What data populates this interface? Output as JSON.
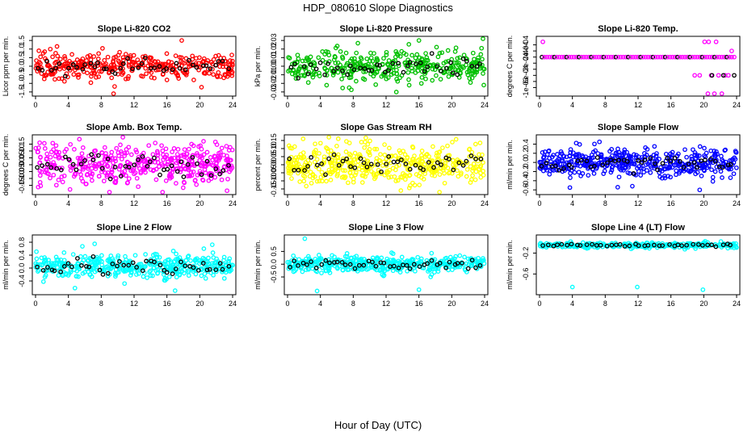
{
  "figure": {
    "title": "HDP_080610  Slope Diagnostics",
    "xlabel": "Hour of Day (UTC)"
  },
  "chart_data": [
    {
      "type": "scatter",
      "title": "Slope Li-820 CO2",
      "ylabel": "Licor ppm per min.",
      "color": "#ff0000",
      "xlim": [
        0,
        24
      ],
      "xticks": [
        "0",
        "4",
        "8",
        "12",
        "16",
        "20",
        "24"
      ],
      "ylim": [
        -1.6,
        1.6
      ],
      "yticks": [
        -1.5,
        -1.0,
        -0.5,
        0.0,
        0.5,
        1.0,
        1.5
      ],
      "ytick_labels": [
        "-1.5",
        "-1.0",
        "-0.5",
        "0.0",
        "0.5",
        "1.0",
        "1.5"
      ],
      "y_center": 0,
      "y_spread": 0.35,
      "n_points": 360,
      "n_black": 45,
      "outliers": [
        [
          0.4,
          0.9
        ],
        [
          1.8,
          1.0
        ],
        [
          9.5,
          -1.6
        ],
        [
          11.0,
          0.7
        ],
        [
          16.0,
          -0.8
        ],
        [
          17.8,
          1.5
        ],
        [
          22.5,
          -0.6
        ]
      ]
    },
    {
      "type": "scatter",
      "title": "Slope Li-820 Pressure",
      "ylabel": "kPa per min.",
      "color": "#00c000",
      "xlim": [
        0,
        24
      ],
      "xticks": [
        "0",
        "4",
        "8",
        "12",
        "16",
        "20",
        "24"
      ],
      "ylim": [
        -0.032,
        0.032
      ],
      "yticks": [
        -0.03,
        -0.02,
        -0.01,
        0.0,
        0.01,
        0.02,
        0.03
      ],
      "ytick_labels": [
        "-0.03",
        "-0.02",
        "-0.01",
        "0.00",
        "0.01",
        "0.02",
        "0.03"
      ],
      "y_center": 0,
      "y_spread": 0.01,
      "n_points": 360,
      "n_black": 45,
      "outliers": [
        [
          7.5,
          -0.025
        ],
        [
          16.0,
          0.03
        ],
        [
          23.8,
          0.032
        ],
        [
          23.9,
          -0.022
        ],
        [
          16.3,
          -0.02
        ]
      ]
    },
    {
      "type": "scatter",
      "title": "Slope Li-820 Temp.",
      "ylabel": "degrees C per min.",
      "color": "#ff00ff",
      "xlim": [
        0,
        24
      ],
      "xticks": [
        "0",
        "4",
        "8",
        "12",
        "16",
        "20",
        "24"
      ],
      "ylim": [
        -0.0012,
        0.0006
      ],
      "yticks": [
        -0.001,
        -0.0008,
        -0.0006,
        -0.0004,
        -0.0002,
        0,
        0.0002,
        0.0004
      ],
      "ytick_labels": [
        "-1e-03",
        "",
        "-6e-04",
        "",
        "-2e-04",
        "",
        "2e-04",
        "4e-04"
      ],
      "y_center": 0,
      "y_spread": 0,
      "n_points": 0,
      "n_black": 0,
      "level_points": {
        "y": 0,
        "x_step": 0.3,
        "black_every": 5
      },
      "outliers": [
        [
          0.4,
          0.0005
        ],
        [
          18.9,
          -0.0006
        ],
        [
          19.5,
          -0.0006
        ],
        [
          20.1,
          0.0005
        ],
        [
          20.6,
          0.0005
        ],
        [
          20.9,
          -0.0006
        ],
        [
          21.3,
          -0.0012
        ],
        [
          21.5,
          0.0005
        ],
        [
          21.8,
          -0.0006
        ],
        [
          22.2,
          -0.0012
        ],
        [
          22.6,
          -0.0006
        ],
        [
          23.0,
          -0.0006
        ],
        [
          23.4,
          0.0002
        ],
        [
          20.5,
          -0.0012
        ]
      ],
      "black_extra": [
        [
          21.0,
          -0.0006
        ],
        [
          22.4,
          -0.0006
        ],
        [
          23.7,
          -0.0006
        ]
      ]
    },
    {
      "type": "scatter",
      "title": "Slope Amb. Box Temp.",
      "ylabel": "degrees C per min.",
      "color": "#ff00ff",
      "xlim": [
        0,
        24
      ],
      "xticks": [
        "0",
        "4",
        "8",
        "12",
        "16",
        "20",
        "24"
      ],
      "ylim": [
        -0.2,
        0.2
      ],
      "yticks": [
        -0.15,
        -0.1,
        -0.05,
        0.0,
        0.05,
        0.1,
        0.15
      ],
      "ytick_labels": [
        "-0.15",
        "-0.10",
        "-0.05",
        "0.00",
        "0.05",
        "0.10",
        "0.15"
      ],
      "y_center": 0,
      "y_spread": 0.07,
      "n_points": 440,
      "n_black": 45,
      "outliers": [
        [
          0.5,
          0.16
        ],
        [
          4.2,
          -0.18
        ],
        [
          9.0,
          -0.2
        ],
        [
          19.0,
          0.15
        ],
        [
          12.5,
          -0.16
        ]
      ]
    },
    {
      "type": "scatter",
      "title": "Slope Gas Stream RH",
      "ylabel": "percent per min.",
      "color": "#ffff00",
      "xlim": [
        0,
        24
      ],
      "xticks": [
        "0",
        "4",
        "8",
        "12",
        "16",
        "20",
        "24"
      ],
      "ylim": [
        -0.17,
        0.17
      ],
      "yticks": [
        -0.15,
        -0.1,
        -0.05,
        0.0,
        0.05,
        0.1,
        0.15
      ],
      "ytick_labels": [
        "-0.15",
        "-0.10",
        "-0.05",
        "0.00",
        "0.05",
        "0.10",
        "0.15"
      ],
      "y_center": 0,
      "y_spread": 0.06,
      "n_points": 440,
      "n_black": 45,
      "outliers": [
        [
          1.9,
          0.16
        ],
        [
          9.0,
          0.14
        ],
        [
          13.8,
          -0.16
        ],
        [
          18.5,
          -0.17
        ]
      ]
    },
    {
      "type": "scatter",
      "title": "Slope Sample Flow",
      "ylabel": "ml/min per min.",
      "color": "#0000ff",
      "xlim": [
        0,
        24
      ],
      "xticks": [
        "0",
        "4",
        "8",
        "12",
        "16",
        "20",
        "24"
      ],
      "ylim": [
        -0.65,
        0.55
      ],
      "yticks": [
        -0.6,
        -0.4,
        -0.2,
        0.0,
        0.2,
        0.4
      ],
      "ytick_labels": [
        "-0.6",
        "-0.4",
        "-0.2",
        "0.0",
        "0.2",
        "0.4"
      ],
      "y_center": 0,
      "y_spread": 0.15,
      "n_points": 440,
      "n_black": 45,
      "outliers": [
        [
          3.7,
          -0.55
        ],
        [
          7.3,
          0.45
        ],
        [
          11.3,
          -0.52
        ],
        [
          19.5,
          -0.6
        ],
        [
          14.0,
          0.35
        ]
      ]
    },
    {
      "type": "scatter",
      "title": "Slope Line 2 Flow",
      "ylabel": "ml/min per min.",
      "color": "#00ffff",
      "xlim": [
        0,
        24
      ],
      "xticks": [
        "0",
        "4",
        "8",
        "12",
        "16",
        "20",
        "24"
      ],
      "ylim": [
        -0.75,
        0.95
      ],
      "yticks": [
        -0.4,
        0.0,
        0.4,
        0.8
      ],
      "ytick_labels": [
        "-0.4",
        "0.0",
        "0.4",
        "0.8"
      ],
      "y_center": 0.05,
      "y_spread": 0.17,
      "n_points": 420,
      "n_black": 45,
      "outliers": [
        [
          4.8,
          -0.62
        ],
        [
          7.2,
          0.75
        ],
        [
          17.0,
          -0.7
        ],
        [
          20.5,
          0.6
        ]
      ]
    },
    {
      "type": "scatter",
      "title": "Slope Line 3 Flow",
      "ylabel": "ml/min per min.",
      "color": "#00ffff",
      "xlim": [
        0,
        24
      ],
      "xticks": [
        "0",
        "4",
        "8",
        "12",
        "16",
        "20",
        "24"
      ],
      "ylim": [
        -1.1,
        1.05
      ],
      "yticks": [
        -0.5,
        0.0,
        0.5
      ],
      "ytick_labels": [
        "-0.5",
        "0.0",
        "0.5"
      ],
      "y_center": 0,
      "y_spread": 0.15,
      "n_points": 420,
      "n_black": 45,
      "outliers": [
        [
          2.1,
          1.0
        ],
        [
          3.6,
          -1.05
        ],
        [
          16.0,
          -1.0
        ]
      ]
    },
    {
      "type": "scatter",
      "title": "Slope Line 4 (LT) Flow",
      "ylabel": "ml/min per min.",
      "color": "#00ffff",
      "xlim": [
        0,
        24
      ],
      "xticks": [
        "0",
        "4",
        "8",
        "12",
        "16",
        "20",
        "24"
      ],
      "ylim": [
        -0.95,
        0.1
      ],
      "yticks": [
        -0.6,
        -0.2
      ],
      "ytick_labels": [
        "-0.6",
        "-0.2"
      ],
      "y_center": -0.05,
      "y_spread": 0.025,
      "n_points": 300,
      "n_black": 40,
      "outliers": [
        [
          4.0,
          -0.85
        ],
        [
          11.9,
          -0.85
        ],
        [
          19.9,
          -0.9
        ]
      ]
    }
  ]
}
